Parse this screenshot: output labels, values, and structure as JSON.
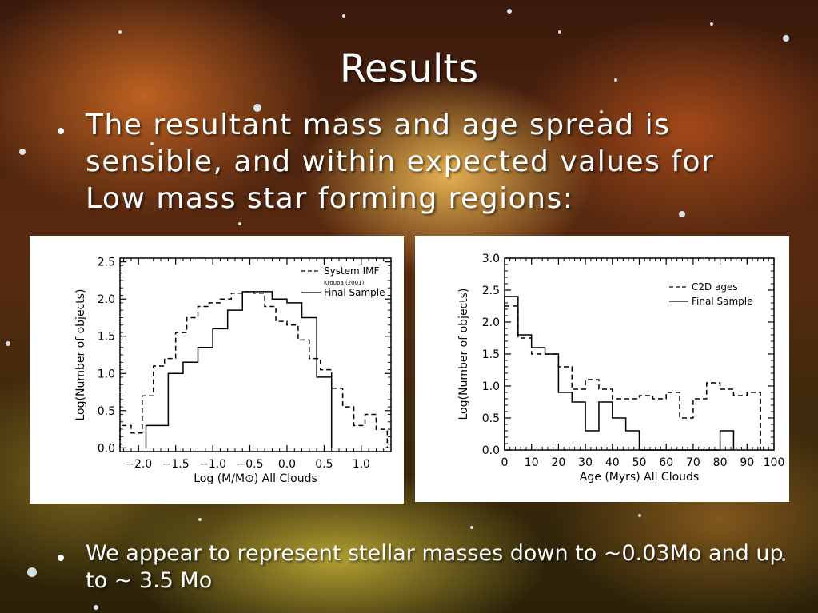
{
  "slide": {
    "title": "Results",
    "bullet1": "The resultant mass and age spread is sensible, and within expected values for Low mass star forming regions:",
    "bullet2": "We appear to represent stellar masses down to ~0.03Mo and up to ~ 3.5 Mo"
  },
  "chart_data": [
    {
      "type": "line",
      "style": "step-histogram",
      "xlabel": "Log (M/M⊙) All Clouds",
      "ylabel": "Log(Number of objects)",
      "xlim": [
        -2.25,
        1.4
      ],
      "ylim": [
        -0.05,
        2.55
      ],
      "xticks": [
        -2.0,
        -1.5,
        -1.0,
        -0.5,
        0.0,
        0.5,
        1.0
      ],
      "xtick_labels": [
        "−2.0",
        "−1.5",
        "−1.0",
        "−0.5",
        "0.0",
        "0.5",
        "1.0"
      ],
      "yticks": [
        0.0,
        0.5,
        1.0,
        1.5,
        2.0,
        2.5
      ],
      "ytick_labels": [
        "0.0",
        "0.5",
        "1.0",
        "1.5",
        "2.0",
        "2.5"
      ],
      "legend_position": "top-right",
      "series": [
        {
          "name": "System IMF",
          "note": "Kroupa (2001)",
          "dash": "dashed",
          "bin_edges": [
            -2.25,
            -2.1,
            -1.95,
            -1.8,
            -1.65,
            -1.5,
            -1.35,
            -1.2,
            -1.05,
            -0.9,
            -0.75,
            -0.6,
            -0.45,
            -0.3,
            -0.15,
            0.0,
            0.15,
            0.3,
            0.45,
            0.6,
            0.75,
            0.9,
            1.05,
            1.2,
            1.35
          ],
          "values": [
            0.3,
            0.2,
            0.7,
            1.1,
            1.2,
            1.55,
            1.75,
            1.9,
            1.95,
            2.0,
            2.08,
            2.1,
            2.08,
            1.9,
            1.7,
            1.65,
            1.45,
            1.2,
            1.05,
            0.8,
            0.55,
            0.3,
            0.45,
            0.25
          ]
        },
        {
          "name": "Final Sample",
          "dash": "solid",
          "bin_edges": [
            -1.9,
            -1.6,
            -1.4,
            -1.2,
            -1.0,
            -0.8,
            -0.6,
            -0.4,
            -0.2,
            0.0,
            0.2,
            0.4,
            0.6
          ],
          "values": [
            0.3,
            1.0,
            1.15,
            1.35,
            1.6,
            1.85,
            2.1,
            2.1,
            2.0,
            1.95,
            1.75,
            0.95
          ]
        }
      ]
    },
    {
      "type": "line",
      "style": "step-histogram",
      "xlabel": "Age (Myrs) All Clouds",
      "ylabel": "Log(Number of objects)",
      "xlim": [
        0,
        100
      ],
      "ylim": [
        0,
        3.0
      ],
      "xticks": [
        0,
        10,
        20,
        30,
        40,
        50,
        60,
        70,
        80,
        90,
        100
      ],
      "xtick_labels": [
        "0",
        "10",
        "20",
        "30",
        "40",
        "50",
        "60",
        "70",
        "80",
        "90",
        "100"
      ],
      "yticks": [
        0.0,
        0.5,
        1.0,
        1.5,
        2.0,
        2.5,
        3.0
      ],
      "ytick_labels": [
        "0.0",
        "0.5",
        "1.0",
        "1.5",
        "2.0",
        "2.5",
        "3.0"
      ],
      "legend_position": "top-right",
      "series": [
        {
          "name": "C2D ages",
          "dash": "dashed",
          "bin_edges": [
            0,
            5,
            10,
            15,
            20,
            25,
            30,
            35,
            40,
            45,
            50,
            55,
            60,
            65,
            70,
            75,
            80,
            85,
            90,
            95
          ],
          "values": [
            2.25,
            1.75,
            1.5,
            1.5,
            1.3,
            0.95,
            1.1,
            0.95,
            0.8,
            0.8,
            0.85,
            0.8,
            0.9,
            0.5,
            0.8,
            1.05,
            0.95,
            0.85,
            0.9
          ]
        },
        {
          "name": "Final Sample",
          "dash": "solid",
          "bin_edges": [
            0,
            5,
            10,
            15,
            20,
            25,
            30,
            35,
            40,
            45,
            50,
            80,
            85
          ],
          "values": [
            2.4,
            1.8,
            1.6,
            1.5,
            0.9,
            0.75,
            0.3,
            0.75,
            0.5,
            0.3,
            0.0,
            0.3
          ]
        }
      ]
    }
  ]
}
